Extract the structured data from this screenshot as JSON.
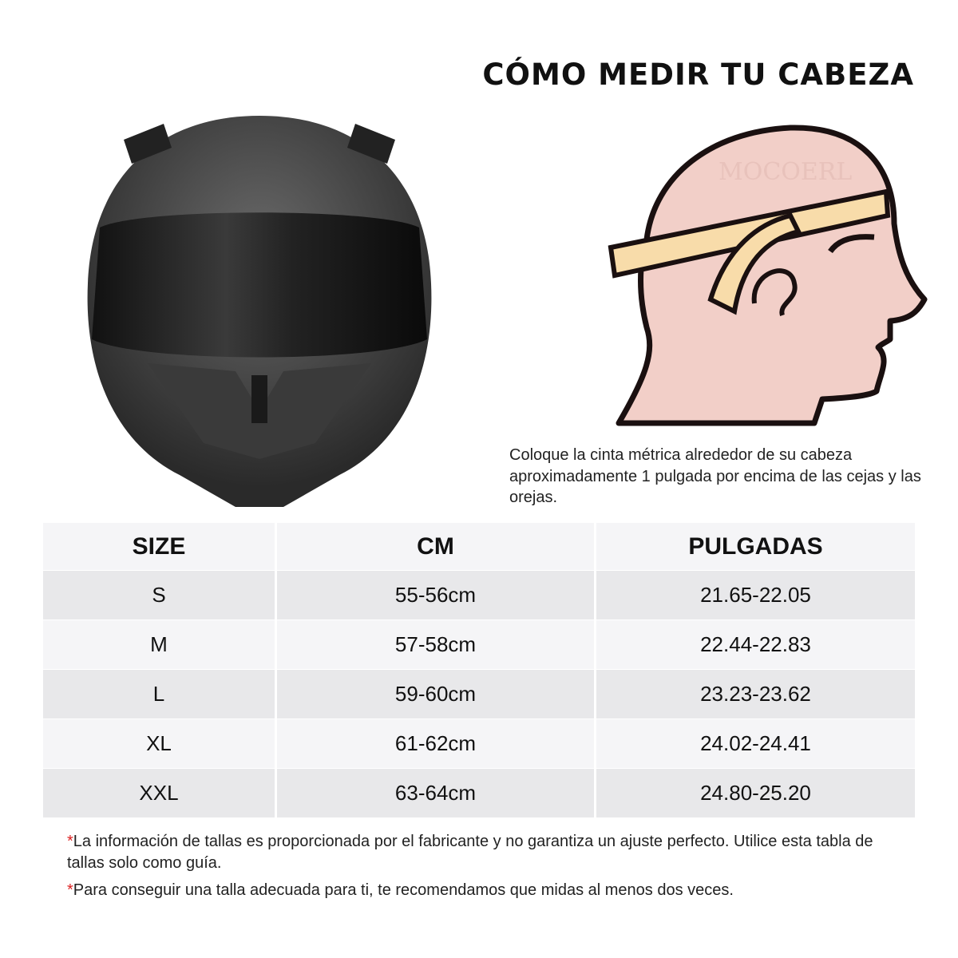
{
  "title": "CÓMO MEDIR TU CABEZA",
  "illustration": {
    "watermark": "MOCOERL"
  },
  "instruction": "Coloque la cinta métrica alrededor de su cabeza aproximadamente 1 pulgada por encima de las cejas y las orejas.",
  "table": {
    "headers": [
      "SIZE",
      "CM",
      "PULGADAS"
    ],
    "rows": [
      [
        "S",
        "55-56cm",
        "21.65-22.05"
      ],
      [
        "M",
        "57-58cm",
        "22.44-22.83"
      ],
      [
        "L",
        "59-60cm",
        "23.23-23.62"
      ],
      [
        "XL",
        "61-62cm",
        "24.02-24.41"
      ],
      [
        "XXL",
        "63-64cm",
        "24.80-25.20"
      ]
    ]
  },
  "notes": [
    {
      "mark": "*",
      "text": "La información de tallas es proporcionada por el fabricante y no garantiza un ajuste perfecto. Utilice esta tabla de tallas solo como guía."
    },
    {
      "mark": "*",
      "text": "Para conseguir una talla adecuada para ti, te recomendamos que midas al menos dos veces."
    }
  ],
  "colors": {
    "row_light": "#f5f5f7",
    "row_dark": "#e8e8ea",
    "note_mark": "#dd2222",
    "skin": "#f2cfc8",
    "tape": "#f8dcaa"
  }
}
